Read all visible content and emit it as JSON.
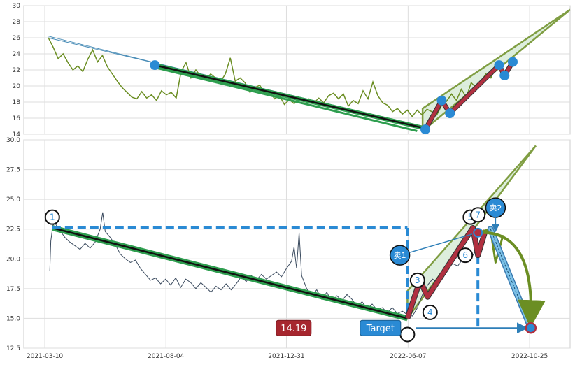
{
  "chart_data": [
    {
      "type": "line",
      "panel": "top",
      "ylim": [
        14,
        30
      ],
      "yticks": [
        14,
        16,
        18,
        20,
        22,
        24,
        26,
        28,
        30
      ],
      "grid": true,
      "series": [
        {
          "points": [
            [
              0.0,
              26.0
            ],
            [
              0.01,
              24.8
            ],
            [
              0.02,
              23.4
            ],
            [
              0.03,
              24.0
            ],
            [
              0.04,
              22.9
            ],
            [
              0.05,
              22.0
            ],
            [
              0.06,
              22.5
            ],
            [
              0.07,
              21.8
            ],
            [
              0.08,
              23.3
            ],
            [
              0.09,
              24.5
            ],
            [
              0.1,
              23.0
            ],
            [
              0.11,
              23.8
            ],
            [
              0.12,
              22.4
            ],
            [
              0.13,
              21.5
            ],
            [
              0.14,
              20.6
            ],
            [
              0.15,
              19.8
            ],
            [
              0.16,
              19.2
            ],
            [
              0.17,
              18.6
            ],
            [
              0.18,
              18.4
            ],
            [
              0.19,
              19.3
            ],
            [
              0.2,
              18.5
            ],
            [
              0.21,
              18.9
            ],
            [
              0.22,
              18.2
            ],
            [
              0.23,
              19.4
            ],
            [
              0.24,
              18.9
            ],
            [
              0.25,
              19.2
            ],
            [
              0.26,
              18.5
            ],
            [
              0.27,
              21.8
            ],
            [
              0.28,
              22.9
            ],
            [
              0.29,
              21.0
            ],
            [
              0.3,
              22.0
            ],
            [
              0.31,
              21.2
            ],
            [
              0.32,
              20.8
            ],
            [
              0.33,
              21.5
            ],
            [
              0.34,
              21.0
            ],
            [
              0.35,
              20.5
            ],
            [
              0.36,
              21.5
            ],
            [
              0.37,
              23.5
            ],
            [
              0.38,
              20.6
            ],
            [
              0.39,
              21.0
            ],
            [
              0.4,
              20.4
            ],
            [
              0.41,
              19.2
            ],
            [
              0.42,
              19.8
            ],
            [
              0.43,
              20.1
            ],
            [
              0.44,
              19.0
            ],
            [
              0.45,
              19.3
            ],
            [
              0.46,
              18.4
            ],
            [
              0.47,
              18.8
            ],
            [
              0.48,
              17.7
            ],
            [
              0.49,
              18.3
            ],
            [
              0.5,
              17.8
            ],
            [
              0.51,
              18.6
            ],
            [
              0.52,
              18.0
            ],
            [
              0.53,
              18.4
            ],
            [
              0.54,
              17.9
            ],
            [
              0.55,
              18.5
            ],
            [
              0.56,
              17.9
            ],
            [
              0.57,
              18.8
            ],
            [
              0.58,
              19.1
            ],
            [
              0.59,
              18.4
            ],
            [
              0.6,
              19.0
            ],
            [
              0.61,
              17.5
            ],
            [
              0.62,
              18.2
            ],
            [
              0.63,
              17.8
            ],
            [
              0.64,
              19.4
            ],
            [
              0.65,
              18.4
            ],
            [
              0.66,
              20.5
            ],
            [
              0.67,
              18.8
            ],
            [
              0.68,
              17.9
            ],
            [
              0.69,
              17.6
            ],
            [
              0.7,
              16.8
            ],
            [
              0.71,
              17.2
            ],
            [
              0.72,
              16.5
            ],
            [
              0.73,
              17.0
            ],
            [
              0.74,
              16.2
            ],
            [
              0.75,
              17.0
            ],
            [
              0.76,
              16.4
            ],
            [
              0.77,
              17.1
            ],
            [
              0.78,
              16.8
            ],
            [
              0.79,
              16.4
            ],
            [
              0.8,
              17.6
            ],
            [
              0.81,
              18.1
            ],
            [
              0.82,
              19.0
            ],
            [
              0.83,
              18.2
            ],
            [
              0.84,
              19.6
            ],
            [
              0.85,
              18.6
            ],
            [
              0.86,
              20.4
            ],
            [
              0.87,
              19.8
            ],
            [
              0.88,
              20.6
            ],
            [
              0.89,
              21.5
            ],
            [
              0.9,
              21.0
            ],
            [
              0.91,
              22.3
            ]
          ]
        }
      ],
      "annotations": {
        "points": [
          [
            0.24,
            22.6
          ],
          [
            0.735,
            14.6
          ],
          [
            0.765,
            18.2
          ],
          [
            0.78,
            16.6
          ],
          [
            0.87,
            22.6
          ],
          [
            0.88,
            21.3
          ],
          [
            0.895,
            23.0
          ]
        ],
        "upper_line": [
          [
            0.0,
            26.2
          ],
          [
            0.73,
            14.6
          ]
        ],
        "lower_line": [
          [
            0.0,
            26.0
          ],
          [
            0.73,
            15.0
          ]
        ],
        "trend_a": [
          [
            0.24,
            22.6
          ],
          [
            0.73,
            14.8
          ]
        ],
        "trend_b": [
          [
            0.24,
            22.3
          ],
          [
            0.72,
            14.4
          ]
        ],
        "channel_top": [
          [
            0.73,
            17.2
          ],
          [
            1.0,
            29.5
          ]
        ],
        "channel_bottom": [
          [
            0.73,
            14.4
          ],
          [
            1.0,
            29.5
          ]
        ],
        "zigzag": [
          [
            0.735,
            14.6
          ],
          [
            0.765,
            18.2
          ],
          [
            0.78,
            16.6
          ],
          [
            0.87,
            22.6
          ],
          [
            0.88,
            21.3
          ],
          [
            0.895,
            23.0
          ]
        ]
      }
    },
    {
      "type": "line",
      "panel": "bottom",
      "ylim": [
        12.5,
        30.0
      ],
      "yticks": [
        12.5,
        15.0,
        17.5,
        20.0,
        22.5,
        25.0,
        27.5,
        30.0
      ],
      "ytick_labels": [
        "12.5",
        "15.0",
        "17.5",
        "20.0",
        "22.5",
        "25.0",
        "27.5",
        "30.0"
      ],
      "xticks": [
        {
          "pos": 0.0,
          "label": "2021-03-10"
        },
        {
          "pos": 0.2405,
          "label": "2021-08-04"
        },
        {
          "pos": 0.4798,
          "label": "2021-12-31"
        },
        {
          "pos": 0.7213,
          "label": "2022-06-07"
        },
        {
          "pos": 0.9626,
          "label": "2022-10-25"
        }
      ],
      "grid": true,
      "series": [
        {
          "points": [
            [
              0.01,
              19.0
            ],
            [
              0.012,
              21.5
            ],
            [
              0.016,
              22.8
            ],
            [
              0.02,
              23.0
            ],
            [
              0.03,
              22.4
            ],
            [
              0.04,
              21.8
            ],
            [
              0.05,
              21.4
            ],
            [
              0.06,
              21.1
            ],
            [
              0.07,
              20.8
            ],
            [
              0.08,
              21.3
            ],
            [
              0.09,
              20.9
            ],
            [
              0.1,
              21.4
            ],
            [
              0.11,
              22.5
            ],
            [
              0.115,
              23.9
            ],
            [
              0.12,
              22.3
            ],
            [
              0.13,
              21.8
            ],
            [
              0.14,
              21.2
            ],
            [
              0.15,
              20.4
            ],
            [
              0.16,
              20.0
            ],
            [
              0.17,
              19.7
            ],
            [
              0.18,
              19.9
            ],
            [
              0.19,
              19.2
            ],
            [
              0.2,
              18.7
            ],
            [
              0.21,
              18.2
            ],
            [
              0.22,
              18.4
            ],
            [
              0.23,
              17.9
            ],
            [
              0.24,
              18.3
            ],
            [
              0.25,
              17.8
            ],
            [
              0.26,
              18.4
            ],
            [
              0.27,
              17.6
            ],
            [
              0.28,
              18.3
            ],
            [
              0.29,
              18.0
            ],
            [
              0.3,
              17.5
            ],
            [
              0.31,
              18.0
            ],
            [
              0.32,
              17.6
            ],
            [
              0.33,
              17.2
            ],
            [
              0.34,
              17.7
            ],
            [
              0.35,
              17.4
            ],
            [
              0.36,
              17.9
            ],
            [
              0.37,
              17.4
            ],
            [
              0.38,
              17.9
            ],
            [
              0.39,
              18.5
            ],
            [
              0.4,
              18.1
            ],
            [
              0.41,
              18.6
            ],
            [
              0.42,
              18.2
            ],
            [
              0.43,
              18.7
            ],
            [
              0.44,
              18.3
            ],
            [
              0.45,
              18.6
            ],
            [
              0.46,
              18.9
            ],
            [
              0.47,
              18.5
            ],
            [
              0.48,
              19.2
            ],
            [
              0.49,
              19.8
            ],
            [
              0.495,
              21.0
            ],
            [
              0.5,
              19.2
            ],
            [
              0.505,
              22.2
            ],
            [
              0.51,
              18.6
            ],
            [
              0.52,
              17.5
            ],
            [
              0.53,
              16.9
            ],
            [
              0.54,
              17.4
            ],
            [
              0.55,
              16.6
            ],
            [
              0.56,
              17.2
            ],
            [
              0.57,
              16.4
            ],
            [
              0.58,
              16.9
            ],
            [
              0.59,
              16.5
            ],
            [
              0.6,
              17.0
            ],
            [
              0.61,
              16.6
            ],
            [
              0.62,
              16.0
            ],
            [
              0.63,
              16.4
            ],
            [
              0.64,
              15.8
            ],
            [
              0.65,
              16.2
            ],
            [
              0.66,
              15.7
            ],
            [
              0.67,
              15.9
            ],
            [
              0.68,
              15.5
            ],
            [
              0.69,
              15.9
            ],
            [
              0.7,
              15.4
            ],
            [
              0.71,
              15.6
            ],
            [
              0.72,
              15.3
            ],
            [
              0.73,
              15.2
            ],
            [
              0.74,
              15.9
            ],
            [
              0.75,
              17.0
            ],
            [
              0.76,
              17.8
            ],
            [
              0.77,
              18.3
            ],
            [
              0.78,
              18.0
            ],
            [
              0.79,
              18.5
            ],
            [
              0.8,
              19.2
            ],
            [
              0.81,
              19.6
            ],
            [
              0.82,
              19.4
            ],
            [
              0.83,
              20.0
            ],
            [
              0.84,
              20.5
            ],
            [
              0.85,
              20.3
            ],
            [
              0.86,
              21.0
            ],
            [
              0.87,
              21.2
            ],
            [
              0.874,
              22.2
            ]
          ]
        }
      ],
      "annotations": {
        "labels": [
          "1",
          "3",
          "4",
          "5",
          "6",
          "7"
        ],
        "label_points": [
          {
            "label": "1",
            "x": 0.015,
            "y": 23.5
          },
          {
            "label": "3",
            "x": 0.74,
            "y": 18.2
          },
          {
            "label": "4",
            "x": 0.765,
            "y": 15.5
          },
          {
            "label": "5",
            "x": 0.845,
            "y": 23.5
          },
          {
            "label": "6",
            "x": 0.835,
            "y": 20.3
          },
          {
            "label": "7",
            "x": 0.86,
            "y": 23.7
          }
        ],
        "sell_labels": [
          {
            "label": "卖1",
            "x": 0.705,
            "y": 20.3
          },
          {
            "label": "卖2",
            "x": 0.895,
            "y": 24.3
          }
        ],
        "target_label": "Target",
        "target_value_label": "14.19",
        "target_point": [
          0.965,
          14.19
        ],
        "trend_line": [
          [
            0.015,
            22.6
          ],
          [
            0.72,
            15.0
          ]
        ],
        "dashed_top": 22.6,
        "dashed_left_x": 0.72,
        "dashed_right_x": 0.86,
        "zigzag": [
          [
            0.72,
            15.0
          ],
          [
            0.745,
            18.2
          ],
          [
            0.76,
            16.8
          ],
          [
            0.85,
            22.6
          ],
          [
            0.86,
            20.3
          ],
          [
            0.875,
            22.4
          ]
        ],
        "channel_top": [
          [
            0.72,
            17.3
          ],
          [
            1.0,
            29.5
          ]
        ],
        "channel_bottom": [
          [
            0.72,
            15.0
          ],
          [
            1.0,
            29.5
          ]
        ],
        "forecast": [
          [
            0.86,
            22.2
          ],
          [
            0.885,
            22.5
          ],
          [
            0.895,
            19.7
          ],
          [
            0.91,
            22.0
          ],
          [
            0.965,
            14.19
          ]
        ]
      }
    }
  ]
}
